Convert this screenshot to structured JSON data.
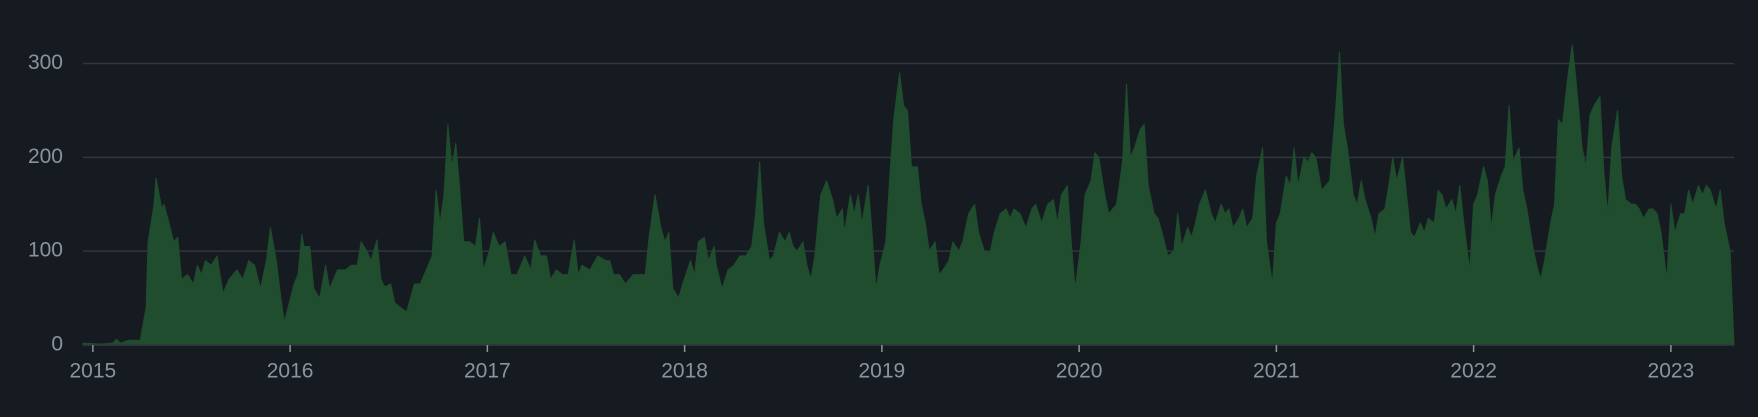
{
  "chart_data": {
    "type": "area",
    "color": "#1f4d2d",
    "grid": true,
    "xlim": [
      2014.95,
      2023.32
    ],
    "xticks": [
      2015,
      2016,
      2017,
      2018,
      2019,
      2020,
      2021,
      2022,
      2023
    ],
    "ylim": [
      0,
      340
    ],
    "yticks": [
      0,
      100,
      200,
      300
    ],
    "x": [
      2014.95,
      2015.04,
      2015.1,
      2015.12,
      2015.14,
      2015.18,
      2015.24,
      2015.27,
      2015.28,
      2015.31,
      2015.32,
      2015.35,
      2015.36,
      2015.38,
      2015.41,
      2015.43,
      2015.45,
      2015.48,
      2015.51,
      2015.53,
      2015.55,
      2015.57,
      2015.6,
      2015.63,
      2015.66,
      2015.69,
      2015.73,
      2015.76,
      2015.79,
      2015.82,
      2015.85,
      2015.88,
      2015.9,
      2015.93,
      2015.95,
      2015.97,
      2015.99,
      2016.02,
      2016.04,
      2016.06,
      2016.07,
      2016.1,
      2016.12,
      2016.15,
      2016.18,
      2016.2,
      2016.24,
      2016.28,
      2016.31,
      2016.34,
      2016.36,
      2016.39,
      2016.41,
      2016.44,
      2016.46,
      2016.48,
      2016.51,
      2016.53,
      2016.56,
      2016.59,
      2016.63,
      2016.66,
      2016.69,
      2016.72,
      2016.74,
      2016.76,
      2016.78,
      2016.8,
      2016.82,
      2016.84,
      2016.86,
      2016.88,
      2016.91,
      2016.94,
      2016.96,
      2016.98,
      2017.01,
      2017.03,
      2017.06,
      2017.09,
      2017.12,
      2017.15,
      2017.19,
      2017.22,
      2017.24,
      2017.27,
      2017.3,
      2017.32,
      2017.35,
      2017.38,
      2017.41,
      2017.44,
      2017.46,
      2017.48,
      2017.52,
      2017.56,
      2017.6,
      2017.62,
      2017.64,
      2017.67,
      2017.7,
      2017.74,
      2017.77,
      2017.8,
      2017.82,
      2017.85,
      2017.88,
      2017.9,
      2017.92,
      2017.94,
      2017.97,
      2017.99,
      2018.03,
      2018.05,
      2018.07,
      2018.1,
      2018.12,
      2018.15,
      2018.16,
      2018.19,
      2018.22,
      2018.25,
      2018.28,
      2018.31,
      2018.34,
      2018.36,
      2018.38,
      2018.4,
      2018.43,
      2018.45,
      2018.48,
      2018.51,
      2018.53,
      2018.55,
      2018.57,
      2018.6,
      2018.62,
      2018.64,
      2018.66,
      2018.69,
      2018.72,
      2018.75,
      2018.77,
      2018.8,
      2018.81,
      2018.84,
      2018.86,
      2018.88,
      2018.9,
      2018.93,
      2018.95,
      2018.97,
      2018.99,
      2019.02,
      2019.04,
      2019.06,
      2019.09,
      2019.11,
      2019.13,
      2019.15,
      2019.18,
      2019.2,
      2019.22,
      2019.24,
      2019.27,
      2019.29,
      2019.31,
      2019.34,
      2019.36,
      2019.39,
      2019.41,
      2019.44,
      2019.47,
      2019.49,
      2019.52,
      2019.55,
      2019.57,
      2019.6,
      2019.63,
      2019.65,
      2019.67,
      2019.7,
      2019.73,
      2019.76,
      2019.78,
      2019.81,
      2019.84,
      2019.87,
      2019.89,
      2019.91,
      2019.94,
      2019.96,
      2019.98,
      2020.01,
      2020.03,
      2020.06,
      2020.08,
      2020.1,
      2020.13,
      2020.15,
      2020.17,
      2020.19,
      2020.22,
      2020.24,
      2020.26,
      2020.28,
      2020.31,
      2020.33,
      2020.35,
      2020.38,
      2020.4,
      2020.42,
      2020.45,
      2020.48,
      2020.5,
      2020.52,
      2020.55,
      2020.57,
      2020.59,
      2020.61,
      2020.64,
      2020.67,
      2020.69,
      2020.72,
      2020.74,
      2020.76,
      2020.78,
      2020.81,
      2020.83,
      2020.85,
      2020.88,
      2020.9,
      2020.93,
      2020.95,
      2020.98,
      2021.0,
      2021.02,
      2021.05,
      2021.07,
      2021.09,
      2021.11,
      2021.14,
      2021.16,
      2021.18,
      2021.2,
      2021.23,
      2021.25,
      2021.27,
      2021.3,
      2021.32,
      2021.34,
      2021.36,
      2021.39,
      2021.41,
      2021.43,
      2021.45,
      2021.48,
      2021.5,
      2021.52,
      2021.55,
      2021.57,
      2021.59,
      2021.61,
      2021.64,
      2021.66,
      2021.68,
      2021.7,
      2021.73,
      2021.75,
      2021.77,
      2021.8,
      2021.82,
      2021.84,
      2021.86,
      2021.89,
      2021.91,
      2021.93,
      2021.95,
      2021.98,
      2022.0,
      2022.02,
      2022.05,
      2022.07,
      2022.09,
      2022.11,
      2022.14,
      2022.16,
      2022.18,
      2022.2,
      2022.23,
      2022.25,
      2022.27,
      2022.3,
      2022.32,
      2022.34,
      2022.36,
      2022.39,
      2022.41,
      2022.43,
      2022.45,
      2022.48,
      2022.5,
      2022.52,
      2022.55,
      2022.57,
      2022.59,
      2022.61,
      2022.64,
      2022.66,
      2022.68,
      2022.7,
      2022.73,
      2022.75,
      2022.77,
      2022.8,
      2022.82,
      2022.84,
      2022.86,
      2022.89,
      2022.91,
      2022.93,
      2022.95,
      2022.98,
      2023.0,
      2023.02,
      2023.05,
      2023.07,
      2023.09,
      2023.11,
      2023.14,
      2023.16,
      2023.18,
      2023.2,
      2023.23,
      2023.25,
      2023.27,
      2023.3,
      2023.32
    ],
    "values": [
      2,
      1,
      2,
      6,
      2,
      5,
      5,
      40,
      110,
      150,
      178,
      145,
      150,
      135,
      110,
      115,
      70,
      75,
      65,
      85,
      75,
      90,
      85,
      95,
      55,
      70,
      80,
      70,
      90,
      85,
      60,
      90,
      125,
      90,
      55,
      25,
      40,
      65,
      75,
      118,
      105,
      105,
      60,
      50,
      85,
      60,
      80,
      80,
      85,
      85,
      110,
      100,
      90,
      112,
      70,
      62,
      65,
      45,
      40,
      35,
      65,
      65,
      80,
      95,
      165,
      130,
      160,
      235,
      190,
      215,
      165,
      110,
      110,
      105,
      135,
      80,
      100,
      120,
      105,
      110,
      75,
      75,
      95,
      80,
      112,
      95,
      95,
      70,
      80,
      75,
      75,
      112,
      75,
      85,
      80,
      95,
      90,
      90,
      75,
      75,
      65,
      75,
      75,
      75,
      115,
      160,
      125,
      110,
      120,
      60,
      50,
      65,
      90,
      75,
      110,
      115,
      90,
      105,
      85,
      60,
      80,
      85,
      95,
      95,
      105,
      140,
      195,
      130,
      90,
      95,
      120,
      110,
      120,
      105,
      100,
      110,
      85,
      70,
      95,
      160,
      175,
      155,
      135,
      145,
      120,
      160,
      140,
      160,
      130,
      170,
      120,
      60,
      85,
      110,
      180,
      240,
      290,
      255,
      250,
      190,
      190,
      150,
      130,
      100,
      110,
      75,
      80,
      90,
      110,
      100,
      110,
      140,
      150,
      120,
      100,
      100,
      120,
      140,
      145,
      135,
      145,
      140,
      125,
      145,
      150,
      130,
      150,
      155,
      130,
      160,
      170,
      110,
      60,
      110,
      160,
      175,
      205,
      200,
      160,
      140,
      145,
      150,
      195,
      278,
      200,
      210,
      230,
      235,
      170,
      140,
      135,
      120,
      95,
      100,
      140,
      105,
      125,
      115,
      130,
      150,
      165,
      140,
      130,
      150,
      140,
      145,
      125,
      135,
      145,
      125,
      135,
      180,
      210,
      110,
      65,
      130,
      140,
      180,
      170,
      210,
      170,
      200,
      195,
      205,
      200,
      165,
      170,
      175,
      250,
      312,
      235,
      210,
      160,
      150,
      175,
      155,
      135,
      115,
      140,
      145,
      170,
      200,
      175,
      200,
      160,
      120,
      115,
      130,
      120,
      135,
      130,
      165,
      160,
      145,
      155,
      140,
      170,
      130,
      80,
      150,
      160,
      190,
      175,
      125,
      160,
      180,
      190,
      255,
      195,
      210,
      165,
      145,
      105,
      85,
      70,
      90,
      130,
      150,
      240,
      235,
      290,
      320,
      280,
      210,
      190,
      245,
      255,
      265,
      185,
      140,
      210,
      250,
      180,
      155,
      150,
      150,
      145,
      135,
      145,
      145,
      140,
      120,
      70,
      150,
      120,
      140,
      140,
      165,
      150,
      170,
      160,
      170,
      165,
      145,
      165,
      130,
      100,
      0
    ]
  }
}
